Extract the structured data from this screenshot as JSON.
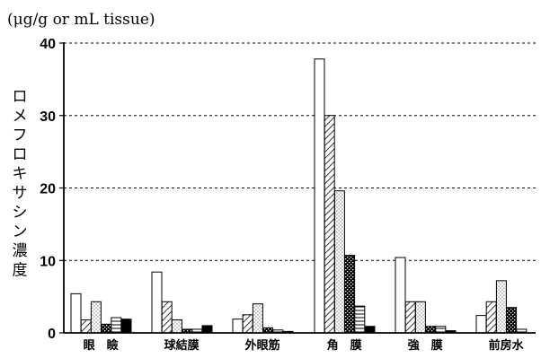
{
  "chart_data": {
    "type": "bar",
    "unit_label": "(μg/g or mL tissue)",
    "ylabel": "ロメフロキサシン濃度",
    "ylim": [
      0,
      40
    ],
    "yticks": [
      0,
      10,
      20,
      30,
      40
    ],
    "grid": "dashed horizontal",
    "categories": [
      "眼 瞼",
      "球結膜",
      "外眼筋",
      "角 膜",
      "強 膜",
      "前房水"
    ],
    "series": [
      {
        "pattern": "white",
        "values": [
          5.4,
          8.4,
          1.9,
          37.8,
          10.4,
          2.4
        ]
      },
      {
        "pattern": "diagonal",
        "values": [
          1.8,
          4.3,
          2.5,
          30.0,
          4.3,
          4.3
        ]
      },
      {
        "pattern": "dots",
        "values": [
          4.3,
          1.8,
          4.0,
          19.6,
          4.3,
          7.2
        ]
      },
      {
        "pattern": "dense-checker",
        "values": [
          1.2,
          0.5,
          0.7,
          10.7,
          0.9,
          3.5
        ]
      },
      {
        "pattern": "horizontal",
        "values": [
          2.1,
          0.5,
          0.4,
          3.7,
          0.9,
          0.5
        ]
      },
      {
        "pattern": "black",
        "values": [
          1.9,
          1.0,
          0.2,
          0.9,
          0.3,
          0.0
        ]
      }
    ]
  }
}
